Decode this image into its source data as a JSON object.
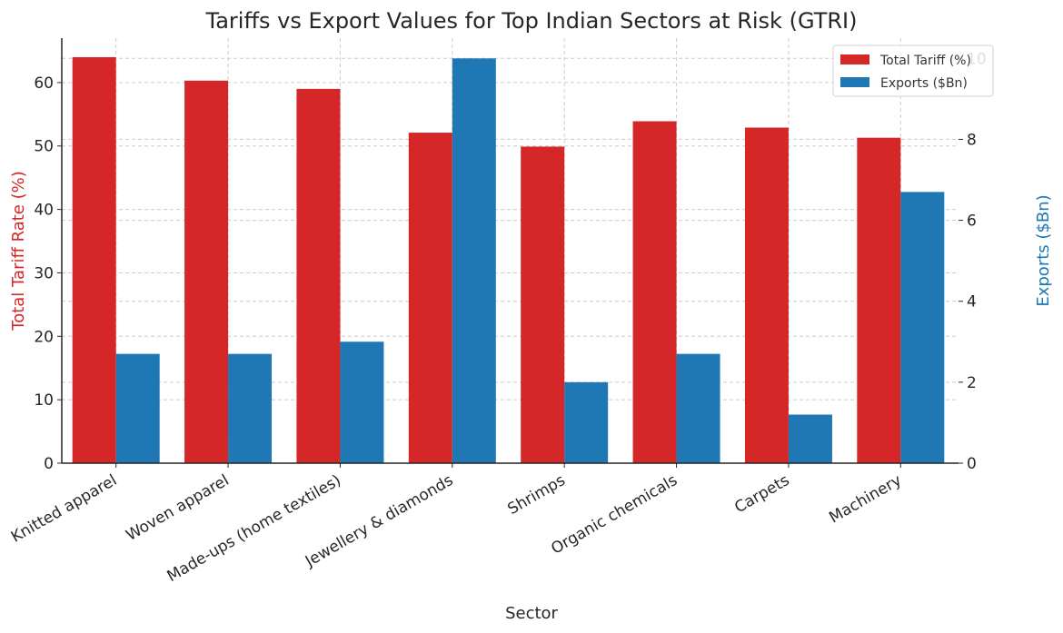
{
  "chart_data": {
    "type": "bar",
    "title": "Tariffs vs Export Values for Top Indian Sectors at Risk (GTRI)",
    "xlabel": "Sector",
    "ylabel": "Total Tariff Rate (%)",
    "y2label": "Exports ($Bn)",
    "categories": [
      "Knitted apparel",
      "Woven apparel",
      "Made-ups (home textiles)",
      "Jewellery & diamonds",
      "Shrimps",
      "Organic chemicals",
      "Carpets",
      "Machinery"
    ],
    "series": [
      {
        "name": "Total Tariff (%)",
        "axis": "left",
        "color": "#d62728",
        "values": [
          64.0,
          60.3,
          59.0,
          52.1,
          49.9,
          53.9,
          52.9,
          51.3
        ]
      },
      {
        "name": "Exports ($Bn)",
        "axis": "right",
        "color": "#1f77b4",
        "values": [
          2.7,
          2.7,
          3.0,
          10.0,
          2.0,
          2.7,
          1.2,
          6.7
        ]
      }
    ],
    "ylim": [
      0,
      67
    ],
    "y2lim": [
      0,
      10.5
    ],
    "yticks": [
      0,
      10,
      20,
      30,
      40,
      50,
      60
    ],
    "y2ticks": [
      0,
      2,
      4,
      6,
      8,
      10
    ],
    "grid": true,
    "legend": "top-right",
    "ylabel_color": "#d62728",
    "y2label_color": "#1f77b4"
  }
}
